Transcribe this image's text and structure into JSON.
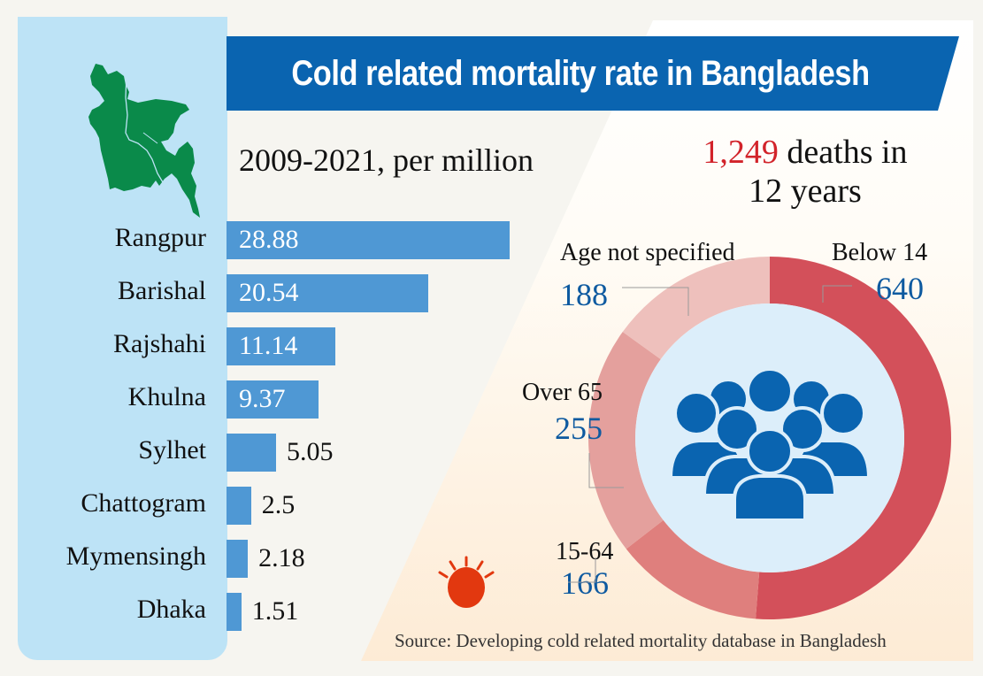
{
  "title": "Cold related mortality rate in Bangladesh",
  "colors": {
    "banner": "#0a64b0",
    "bar": "#4f98d4",
    "left_panel": "#bde3f6",
    "map": "#0a8a4a",
    "highlight": "#d2232a",
    "donut_value": "#0e5aa0",
    "people_icon": "#0a64b0",
    "sun": "#e2380f"
  },
  "icons": {
    "map": "bangladesh-map-icon",
    "people": "people-group-icon",
    "sun": "sun-icon"
  },
  "headline": {
    "number": "1,249",
    "text_line1": " deaths in",
    "text_line2": "12 years"
  },
  "source": "Source: Developing cold related mortality database in Bangladesh",
  "chart_data": [
    {
      "type": "bar",
      "orientation": "horizontal",
      "title": "2009-2021, per million",
      "xlabel": "",
      "ylabel": "",
      "categories": [
        "Rangpur",
        "Barishal",
        "Rajshahi",
        "Khulna",
        "Sylhet",
        "Chattogram",
        "Mymensingh",
        "Dhaka"
      ],
      "values": [
        28.88,
        20.54,
        11.14,
        9.37,
        5.05,
        2.5,
        2.18,
        1.51
      ],
      "value_labels": [
        "28.88",
        "20.54",
        "11.14",
        "9.37",
        "5.05",
        "2.5",
        "2.18",
        "1.51"
      ],
      "xlim": [
        0,
        28.88
      ],
      "grid": false
    },
    {
      "type": "pie",
      "subtype": "donut",
      "title": "1,249 deaths in 12 years",
      "categories": [
        "Below 14",
        "15-64",
        "Over 65",
        "Age not specified"
      ],
      "values": [
        640,
        166,
        255,
        188
      ],
      "value_labels": [
        "640",
        "166",
        "255",
        "188"
      ],
      "colors": [
        "#d3505a",
        "#df7f7d",
        "#e4a09d",
        "#eec0bc"
      ],
      "start_angle": "12 o'clock",
      "direction": "clockwise"
    }
  ]
}
